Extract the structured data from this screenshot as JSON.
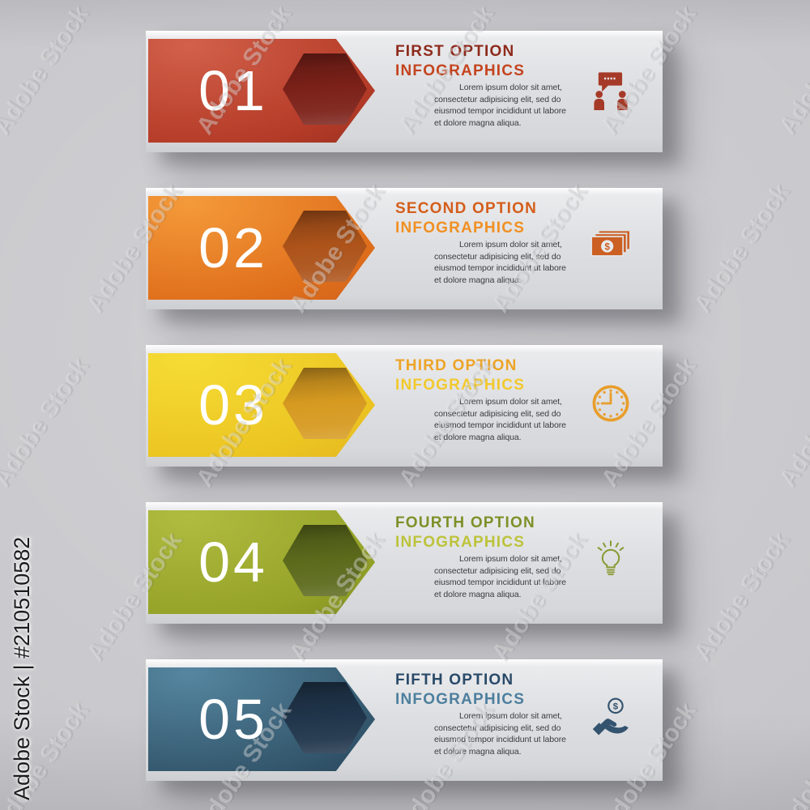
{
  "page": {
    "background": "#c8c8cc"
  },
  "watermark": {
    "credit": "Adobe Stock | #210510582",
    "tile": "Adobe Stock"
  },
  "banners": [
    {
      "number": "01",
      "title_line1": "FIRST OPTION",
      "title_line2": "INFOGRAPHICS",
      "body": "Lorem ipsum dolor sit amet, consectetur adipisicing elit, sed do eiusmod tempor incididunt ut labore et dolore magna aliqua.",
      "icon": "discussion-icon",
      "colors": {
        "grad-a": "#d2604a",
        "grad-b": "#b53c28",
        "grad-c": "#8f2a1b",
        "hex": "#7c2119",
        "t1": "#8e2a1c",
        "t2": "#c4441f",
        "icon": "#a63a28",
        "num": "#ffffff"
      }
    },
    {
      "number": "02",
      "title_line1": "SECOND OPTION",
      "title_line2": "INFOGRAPHICS",
      "body": "Lorem ipsum dolor sit amet, consectetur adipisicing elit, sed do eiusmod tempor incididunt ut labore et dolore magna aliqua.",
      "icon": "money-icon",
      "colors": {
        "grad-a": "#f49a3a",
        "grad-b": "#e0701c",
        "grad-c": "#c8581a",
        "hex": "#ad531a",
        "t1": "#d45e1b",
        "t2": "#f09022",
        "icon": "#cc5f22",
        "num": "#ffffff"
      }
    },
    {
      "number": "03",
      "title_line1": "THIRD OPTION",
      "title_line2": "INFOGRAPHICS",
      "body": "Lorem ipsum dolor sit amet, consectetur adipisicing elit, sed do eiusmod tempor incididunt ut labore et dolore magna aliqua.",
      "icon": "clock-icon",
      "colors": {
        "grad-a": "#f6dc35",
        "grad-b": "#ecc522",
        "grad-c": "#dfae1f",
        "hex": "#d69a20",
        "t1": "#eda426",
        "t2": "#f2c92d",
        "icon": "#e89e2b",
        "num": "#ffffff"
      }
    },
    {
      "number": "04",
      "title_line1": "FOURTH OPTION",
      "title_line2": "INFOGRAPHICS",
      "body": "Lorem ipsum dolor sit amet, consectetur adipisicing elit, sed do eiusmod tempor incididunt ut labore et dolore magna aliqua.",
      "icon": "idea-bulb-icon",
      "colors": {
        "grad-a": "#b0bc40",
        "grad-b": "#95a328",
        "grad-c": "#78861f",
        "hex": "#5c6a1c",
        "t1": "#7e9028",
        "t2": "#bcc33a",
        "icon": "#8a9a35",
        "num": "#ffffff"
      }
    },
    {
      "number": "05",
      "title_line1": "FIFTH OPTION",
      "title_line2": "INFOGRAPHICS",
      "body": "Lorem ipsum dolor sit amet, consectetur adipisicing elit, sed do eiusmod tempor incididunt ut labore et dolore magna aliqua.",
      "icon": "hand-dollar-icon",
      "colors": {
        "grad-a": "#5586a0",
        "grad-b": "#35596f",
        "grad-c": "#223c52",
        "hex": "#20354b",
        "t1": "#2a4a69",
        "t2": "#4d7f9e",
        "icon": "#33536e",
        "num": "#ffffff"
      }
    }
  ]
}
